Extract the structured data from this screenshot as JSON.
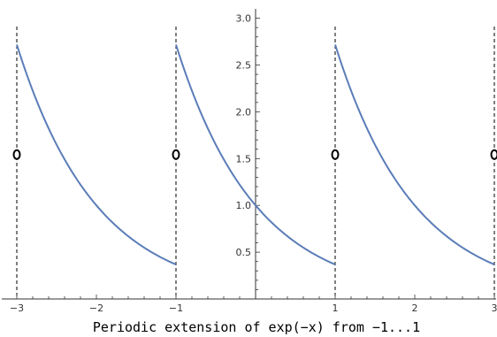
{
  "chart_data": {
    "type": "line",
    "xlabel": "Periodic extension of exp(−x) from −1...1",
    "xlim": [
      -3,
      3
    ],
    "ylim": [
      0,
      3.1
    ],
    "grid": false,
    "legend": "none",
    "x_ticks": [
      {
        "value": -3,
        "label": "−3"
      },
      {
        "value": -2,
        "label": "−2"
      },
      {
        "value": -1,
        "label": "−1"
      },
      {
        "value": 1,
        "label": "1"
      },
      {
        "value": 2,
        "label": "2"
      },
      {
        "value": 3,
        "label": "3"
      }
    ],
    "y_ticks": [
      {
        "value": 0.5,
        "label": "0.5"
      },
      {
        "value": 1.0,
        "label": "1.0"
      },
      {
        "value": 1.5,
        "label": "1.5"
      },
      {
        "value": 2.0,
        "label": "2.0"
      },
      {
        "value": 2.5,
        "label": "2.5"
      },
      {
        "value": 3.0,
        "label": "3.0"
      }
    ],
    "series": [
      {
        "function": "exp(-x)",
        "period": 2,
        "segments": [
          [
            -3,
            -1
          ],
          [
            -1,
            1
          ],
          [
            1,
            3
          ]
        ],
        "color": "#5b7db8"
      }
    ],
    "discontinuities": [
      -3,
      -1,
      1,
      3
    ],
    "midpoint_markers": [
      {
        "x": -3,
        "y": 1.5431
      },
      {
        "x": -1,
        "y": 1.5431
      },
      {
        "x": 1,
        "y": 1.5431
      },
      {
        "x": 3,
        "y": 1.5431
      }
    ]
  }
}
